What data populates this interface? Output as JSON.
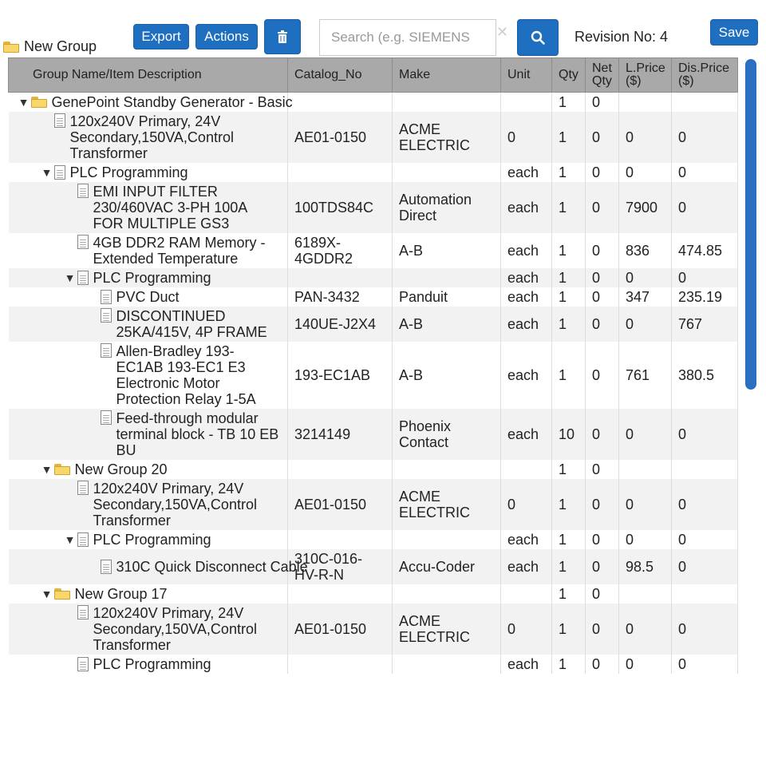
{
  "toolbar": {
    "group_name": "New Group",
    "export_label": "Export",
    "actions_label": "Actions",
    "delete_icon": "trash-icon",
    "search_placeholder": "Search (e.g. SIEMENS",
    "search_value": "",
    "search_icon": "search-icon",
    "revision_text": "Revision No: 4",
    "save_label": "Save"
  },
  "colors": {
    "accent": "#1f6fc1",
    "header_bg": "#a9a9a9",
    "row_alt": "#f2f2f2",
    "folder": "#f7d66b"
  },
  "table": {
    "columns": [
      "Group Name/Item Description",
      "Catalog_No",
      "Make",
      "Unit",
      "Qty",
      "Net Qty",
      "L.Price ($)",
      "Dis.Price ($)"
    ],
    "rows": [
      {
        "level": 0,
        "kind": "folder",
        "expand": true,
        "desc": "GenePoint Standby Generator - Basic",
        "catalog": "",
        "make": "",
        "unit": "",
        "qty": "1",
        "net": "0",
        "lprice": "",
        "dprice": ""
      },
      {
        "level": 1,
        "kind": "doc",
        "expand": false,
        "desc": "120x240V Primary, 24V Secondary,150VA,Control Transformer",
        "catalog": "AE01-0150",
        "make": "ACME ELECTRIC",
        "unit": "0",
        "qty": "1",
        "net": "0",
        "lprice": "0",
        "dprice": "0"
      },
      {
        "level": 1,
        "kind": "doc",
        "expand": true,
        "desc": "PLC Programming",
        "catalog": "",
        "make": "",
        "unit": "each",
        "qty": "1",
        "net": "0",
        "lprice": "0",
        "dprice": "0"
      },
      {
        "level": 2,
        "kind": "doc",
        "expand": false,
        "desc": "EMI INPUT FILTER 230/460VAC 3-PH 100A FOR MULTIPLE GS3",
        "catalog": "100TDS84C",
        "make": "Automation Direct",
        "unit": "each",
        "qty": "1",
        "net": "0",
        "lprice": "7900",
        "dprice": "0"
      },
      {
        "level": 2,
        "kind": "doc",
        "expand": false,
        "desc": "4GB DDR2 RAM Memory - Extended Temperature",
        "catalog": "6189X-4GDDR2",
        "make": "A-B",
        "unit": "each",
        "qty": "1",
        "net": "0",
        "lprice": "836",
        "dprice": "474.85"
      },
      {
        "level": 2,
        "kind": "doc",
        "expand": true,
        "desc": "PLC Programming",
        "catalog": "",
        "make": "",
        "unit": "each",
        "qty": "1",
        "net": "0",
        "lprice": "0",
        "dprice": "0"
      },
      {
        "level": 3,
        "kind": "doc",
        "expand": false,
        "desc": "PVC Duct",
        "catalog": "PAN-3432",
        "make": "Panduit",
        "unit": "each",
        "qty": "1",
        "net": "0",
        "lprice": "347",
        "dprice": "235.19"
      },
      {
        "level": 3,
        "kind": "doc",
        "expand": false,
        "desc": "DISCONTINUED 25KA/415V, 4P FRAME",
        "catalog": "140UE-J2X4",
        "make": "A-B",
        "unit": "each",
        "qty": "1",
        "net": "0",
        "lprice": "0",
        "dprice": "767"
      },
      {
        "level": 3,
        "kind": "doc",
        "expand": false,
        "desc": "Allen-Bradley 193-EC1AB 193-EC1 E3 Electronic Motor Protection Relay 1-5A",
        "catalog": "193-EC1AB",
        "make": "A-B",
        "unit": "each",
        "qty": "1",
        "net": "0",
        "lprice": "761",
        "dprice": "380.5"
      },
      {
        "level": 3,
        "kind": "doc",
        "expand": false,
        "desc": "Feed-through modular terminal block - TB 10 EB BU",
        "catalog": "3214149",
        "make": "Phoenix Contact",
        "unit": "each",
        "qty": "10",
        "net": "0",
        "lprice": "0",
        "dprice": "0"
      },
      {
        "level": 1,
        "kind": "folder",
        "expand": true,
        "desc": "New Group 20",
        "catalog": "",
        "make": "",
        "unit": "",
        "qty": "1",
        "net": "0",
        "lprice": "",
        "dprice": ""
      },
      {
        "level": 2,
        "kind": "doc",
        "expand": false,
        "desc": "120x240V Primary, 24V Secondary,150VA,Control Transformer",
        "catalog": "AE01-0150",
        "make": "ACME ELECTRIC",
        "unit": "0",
        "qty": "1",
        "net": "0",
        "lprice": "0",
        "dprice": "0"
      },
      {
        "level": 2,
        "kind": "doc",
        "expand": true,
        "desc": "PLC Programming",
        "catalog": "",
        "make": "",
        "unit": "each",
        "qty": "1",
        "net": "0",
        "lprice": "0",
        "dprice": "0"
      },
      {
        "level": 3,
        "kind": "doc",
        "expand": false,
        "desc": "310C Quick Disconnect Cable",
        "catalog": "310C-016-HV-R-N",
        "make": "Accu-Coder",
        "unit": "each",
        "qty": "1",
        "net": "0",
        "lprice": "98.5",
        "dprice": "0"
      },
      {
        "level": 1,
        "kind": "folder",
        "expand": true,
        "desc": "New Group 17",
        "catalog": "",
        "make": "",
        "unit": "",
        "qty": "1",
        "net": "0",
        "lprice": "",
        "dprice": ""
      },
      {
        "level": 2,
        "kind": "doc",
        "expand": false,
        "desc": "120x240V Primary, 24V Secondary,150VA,Control Transformer",
        "catalog": "AE01-0150",
        "make": "ACME ELECTRIC",
        "unit": "0",
        "qty": "1",
        "net": "0",
        "lprice": "0",
        "dprice": "0"
      },
      {
        "level": 2,
        "kind": "doc",
        "expand": false,
        "desc": "PLC Programming",
        "catalog": "",
        "make": "",
        "unit": "each",
        "qty": "1",
        "net": "0",
        "lprice": "0",
        "dprice": "0"
      }
    ]
  }
}
